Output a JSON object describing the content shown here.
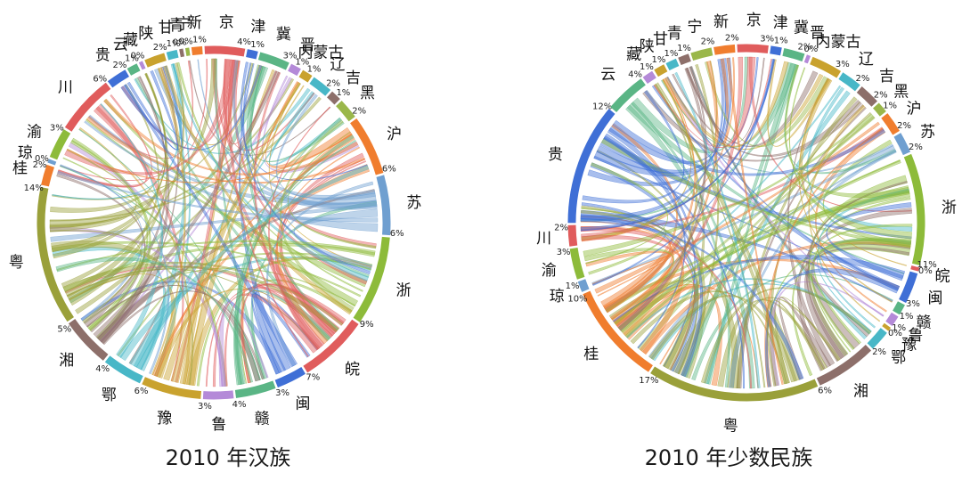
{
  "chart_data": [
    {
      "type": "chord",
      "title": "2010 年汉族",
      "palette": [
        "#e8877a",
        "#3f6fd6",
        "#5ab585",
        "#9ab74a",
        "#f39a4a",
        "#8d6f6a",
        "#48b7c7",
        "#c9a22e",
        "#b48ad8",
        "#6fbf6f",
        "#f06f6f",
        "#55aadd",
        "#e3c95b",
        "#a0a0a0"
      ],
      "segments": [
        {
          "label": "京",
          "pct": "4%",
          "value": 4,
          "color": "#e05c5c"
        },
        {
          "label": "津",
          "pct": "1%",
          "value": 1,
          "color": "#3f6fd6"
        },
        {
          "label": "冀",
          "pct": "3%",
          "value": 3,
          "color": "#5ab585"
        },
        {
          "label": "晋",
          "pct": "1%",
          "value": 1,
          "color": "#b48ad8"
        },
        {
          "label": "内蒙古",
          "pct": "1%",
          "value": 1,
          "color": "#c9a22e"
        },
        {
          "label": "辽",
          "pct": "2%",
          "value": 2,
          "color": "#48b7c7"
        },
        {
          "label": "吉",
          "pct": "1%",
          "value": 1,
          "color": "#8d6f6a"
        },
        {
          "label": "黑",
          "pct": "2%",
          "value": 2,
          "color": "#9ab74a"
        },
        {
          "label": "沪",
          "pct": "6%",
          "value": 6,
          "color": "#f07d2e"
        },
        {
          "label": "苏",
          "pct": "6%",
          "value": 6,
          "color": "#6f9fd0"
        },
        {
          "label": "浙",
          "pct": "9%",
          "value": 9,
          "color": "#8dbb3a"
        },
        {
          "label": "皖",
          "pct": "7%",
          "value": 7,
          "color": "#e05c5c"
        },
        {
          "label": "闽",
          "pct": "3%",
          "value": 3,
          "color": "#3f6fd6"
        },
        {
          "label": "赣",
          "pct": "4%",
          "value": 4,
          "color": "#5ab585"
        },
        {
          "label": "鲁",
          "pct": "3%",
          "value": 3,
          "color": "#b48ad8"
        },
        {
          "label": "豫",
          "pct": "6%",
          "value": 6,
          "color": "#c9a22e"
        },
        {
          "label": "鄂",
          "pct": "4%",
          "value": 4,
          "color": "#48b7c7"
        },
        {
          "label": "湘",
          "pct": "5%",
          "value": 5,
          "color": "#8d6f6a"
        },
        {
          "label": "粤",
          "pct": "14%",
          "value": 14,
          "color": "#9aa03a"
        },
        {
          "label": "桂",
          "pct": "2%",
          "value": 2,
          "color": "#f07d2e"
        },
        {
          "label": "琼",
          "pct": "0%",
          "value": 0.3,
          "color": "#6f9fd0"
        },
        {
          "label": "渝",
          "pct": "3%",
          "value": 3,
          "color": "#8dbb3a"
        },
        {
          "label": "川",
          "pct": "6%",
          "value": 6,
          "color": "#e05c5c"
        },
        {
          "label": "贵",
          "pct": "2%",
          "value": 2,
          "color": "#3f6fd6"
        },
        {
          "label": "云",
          "pct": "1%",
          "value": 1,
          "color": "#5ab585"
        },
        {
          "label": "藏",
          "pct": "0%",
          "value": 0.3,
          "color": "#b48ad8"
        },
        {
          "label": "陕",
          "pct": "2%",
          "value": 2,
          "color": "#c9a22e"
        },
        {
          "label": "甘",
          "pct": "1%",
          "value": 1,
          "color": "#48b7c7"
        },
        {
          "label": "青",
          "pct": "0%",
          "value": 0.3,
          "color": "#8d6f6a"
        },
        {
          "label": "宁",
          "pct": "0%",
          "value": 0.3,
          "color": "#9ab74a"
        },
        {
          "label": "新",
          "pct": "1%",
          "value": 1,
          "color": "#f07d2e"
        }
      ]
    },
    {
      "type": "chord",
      "title": "2010 年少数民族",
      "palette": [
        "#3f6fd6",
        "#f39a4a",
        "#8d6f6a",
        "#5ab585",
        "#48b7c7",
        "#9ab74a",
        "#e8877a",
        "#b48ad8",
        "#c9a22e",
        "#6fbf6f"
      ],
      "segments": [
        {
          "label": "京",
          "pct": "3%",
          "value": 3,
          "color": "#e05c5c"
        },
        {
          "label": "津",
          "pct": "1%",
          "value": 1,
          "color": "#3f6fd6"
        },
        {
          "label": "冀",
          "pct": "2%",
          "value": 2,
          "color": "#5ab585"
        },
        {
          "label": "晋",
          "pct": "0%",
          "value": 0.3,
          "color": "#b48ad8"
        },
        {
          "label": "内蒙古",
          "pct": "3%",
          "value": 3,
          "color": "#c9a22e"
        },
        {
          "label": "辽",
          "pct": "2%",
          "value": 2,
          "color": "#48b7c7"
        },
        {
          "label": "吉",
          "pct": "2%",
          "value": 2,
          "color": "#8d6f6a"
        },
        {
          "label": "黑",
          "pct": "1%",
          "value": 1,
          "color": "#9ab74a"
        },
        {
          "label": "沪",
          "pct": "2%",
          "value": 2,
          "color": "#f07d2e"
        },
        {
          "label": "苏",
          "pct": "2%",
          "value": 2,
          "color": "#6f9fd0"
        },
        {
          "label": "浙",
          "pct": "11%",
          "value": 11,
          "color": "#8dbb3a"
        },
        {
          "label": "皖",
          "pct": "0%",
          "value": 0.3,
          "color": "#e05c5c"
        },
        {
          "label": "闽",
          "pct": "3%",
          "value": 3,
          "color": "#3f6fd6"
        },
        {
          "label": "赣",
          "pct": "1%",
          "value": 1,
          "color": "#5ab585"
        },
        {
          "label": "鲁",
          "pct": "1%",
          "value": 1,
          "color": "#b48ad8"
        },
        {
          "label": "豫",
          "pct": "0%",
          "value": 0.3,
          "color": "#c9a22e"
        },
        {
          "label": "鄂",
          "pct": "2%",
          "value": 2,
          "color": "#48b7c7"
        },
        {
          "label": "湘",
          "pct": "6%",
          "value": 6,
          "color": "#8d6f6a"
        },
        {
          "label": "粤",
          "pct": "17%",
          "value": 17,
          "color": "#9aa03a"
        },
        {
          "label": "桂",
          "pct": "10%",
          "value": 10,
          "color": "#f07d2e"
        },
        {
          "label": "琼",
          "pct": "1%",
          "value": 1,
          "color": "#6f9fd0"
        },
        {
          "label": "渝",
          "pct": "3%",
          "value": 3,
          "color": "#8dbb3a"
        },
        {
          "label": "川",
          "pct": "2%",
          "value": 2,
          "color": "#e05c5c"
        },
        {
          "label": "贵",
          "pct": "12%",
          "value": 12,
          "color": "#3f6fd6"
        },
        {
          "label": "云",
          "pct": "4%",
          "value": 4,
          "color": "#5ab585"
        },
        {
          "label": "藏",
          "pct": "1%",
          "value": 1,
          "color": "#b48ad8"
        },
        {
          "label": "陕",
          "pct": "1%",
          "value": 1,
          "color": "#c9a22e"
        },
        {
          "label": "甘",
          "pct": "1%",
          "value": 1,
          "color": "#48b7c7"
        },
        {
          "label": "青",
          "pct": "1%",
          "value": 1,
          "color": "#8d6f6a"
        },
        {
          "label": "宁",
          "pct": "2%",
          "value": 2,
          "color": "#9ab74a"
        },
        {
          "label": "新",
          "pct": "2%",
          "value": 2,
          "color": "#f07d2e"
        }
      ]
    }
  ]
}
